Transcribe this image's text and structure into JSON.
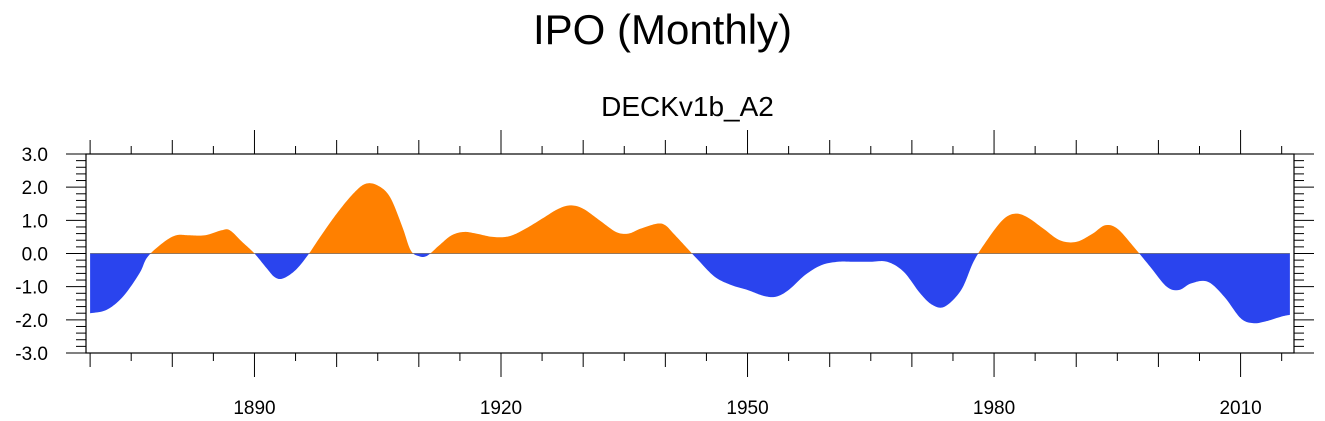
{
  "title": "IPO (Monthly)",
  "subtitle": "DECKv1b_A2",
  "chart_data": {
    "type": "area",
    "title": "IPO (Monthly)",
    "subtitle": "DECKv1b_A2",
    "xlabel": "",
    "ylabel": "",
    "xlim": [
      1869.5,
      2016.5
    ],
    "ylim": [
      -3.0,
      3.0
    ],
    "x_ticks": [
      1890,
      1920,
      1950,
      1980,
      2010
    ],
    "x_tick_labels": [
      "1890",
      "1920",
      "1950",
      "1980",
      "2010"
    ],
    "y_ticks": [
      3.0,
      2.0,
      1.0,
      0.0,
      -1.0,
      -2.0,
      -3.0
    ],
    "y_tick_labels": [
      "3.0",
      "2.0",
      "1.0",
      "0.0",
      "-1.0",
      "-2.0",
      "-3.0"
    ],
    "positive_color": "#ff8000",
    "negative_color": "#2a44ee",
    "series": [
      {
        "name": "IPO",
        "x": [
          1870,
          1872,
          1874,
          1876,
          1877,
          1879,
          1880.5,
          1882,
          1884,
          1886,
          1887,
          1888.5,
          1890,
          1891.5,
          1892.5,
          1893.5,
          1895,
          1896.5,
          1898,
          1900,
          1902,
          1903.5,
          1905,
          1906.5,
          1908,
          1909,
          1910,
          1911,
          1912.5,
          1914,
          1915.5,
          1917,
          1919,
          1921,
          1923,
          1925,
          1927,
          1928.5,
          1930,
          1932,
          1934,
          1935.5,
          1937,
          1939,
          1940,
          1941,
          1942.5,
          1944,
          1946,
          1948,
          1950,
          1952,
          1953.5,
          1955,
          1957,
          1959,
          1961,
          1963,
          1965,
          1967,
          1969,
          1971,
          1972.5,
          1974,
          1976,
          1977.5,
          1979,
          1981,
          1982.5,
          1984,
          1986,
          1988,
          1990,
          1992,
          1993.5,
          1995,
          1997,
          1999,
          2001,
          2002.5,
          2004,
          2006,
          2008,
          2010,
          2011.5,
          2013,
          2015,
          2016
        ],
        "values": [
          -1.8,
          -1.7,
          -1.3,
          -0.6,
          -0.1,
          0.35,
          0.55,
          0.55,
          0.55,
          0.7,
          0.7,
          0.35,
          0.0,
          -0.45,
          -0.72,
          -0.75,
          -0.5,
          -0.05,
          0.5,
          1.2,
          1.8,
          2.1,
          2.05,
          1.7,
          0.8,
          0.1,
          -0.08,
          -0.07,
          0.25,
          0.55,
          0.65,
          0.6,
          0.5,
          0.52,
          0.75,
          1.05,
          1.35,
          1.45,
          1.35,
          1.0,
          0.65,
          0.6,
          0.75,
          0.9,
          0.85,
          0.6,
          0.2,
          -0.2,
          -0.7,
          -0.95,
          -1.1,
          -1.28,
          -1.3,
          -1.1,
          -0.65,
          -0.35,
          -0.25,
          -0.25,
          -0.25,
          -0.25,
          -0.55,
          -1.2,
          -1.55,
          -1.6,
          -1.1,
          -0.25,
          0.35,
          1.0,
          1.2,
          1.1,
          0.75,
          0.4,
          0.35,
          0.6,
          0.85,
          0.75,
          0.2,
          -0.4,
          -1.0,
          -1.1,
          -0.9,
          -0.85,
          -1.3,
          -1.95,
          -2.1,
          -2.05,
          -1.9,
          -1.85
        ]
      }
    ]
  }
}
